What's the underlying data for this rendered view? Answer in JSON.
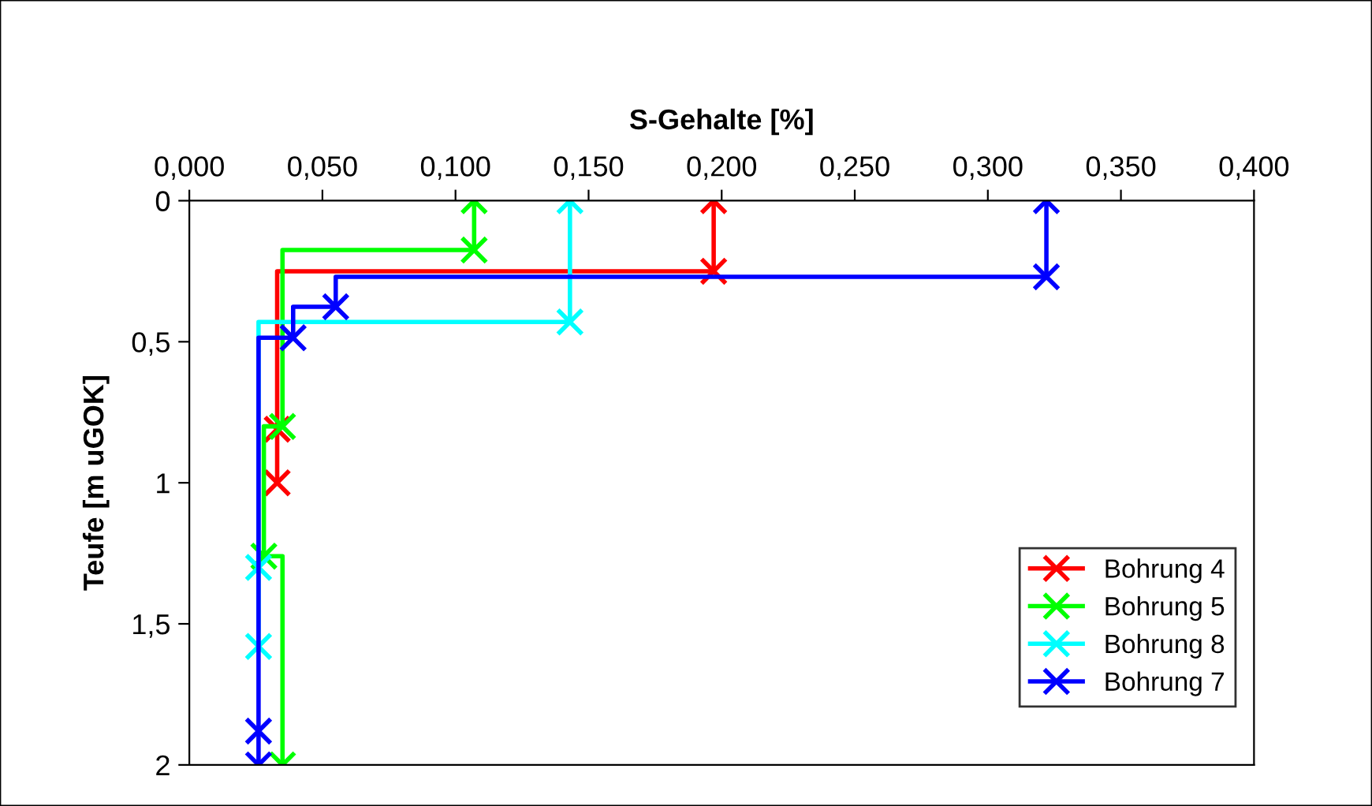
{
  "chart_data": {
    "type": "step",
    "xlabel": "S-Gehalte [%]",
    "ylabel": "Teufe [m uGOK]",
    "xlim": [
      0,
      0.4
    ],
    "ylim": [
      2,
      0
    ],
    "xticks": [
      {
        "value": 0,
        "label": "0,000"
      },
      {
        "value": 0.05,
        "label": "0,050"
      },
      {
        "value": 0.1,
        "label": "0,100"
      },
      {
        "value": 0.15,
        "label": "0,150"
      },
      {
        "value": 0.2,
        "label": "0,200"
      },
      {
        "value": 0.25,
        "label": "0,250"
      },
      {
        "value": 0.3,
        "label": "0,300"
      },
      {
        "value": 0.35,
        "label": "0,350"
      },
      {
        "value": 0.4,
        "label": "0,400"
      }
    ],
    "yticks": [
      0,
      {
        "value": 0.5,
        "label": "0,5"
      },
      1,
      {
        "value": 1.5,
        "label": "1,5"
      },
      2
    ],
    "series": [
      {
        "name": "Bohrung 4",
        "color": "#ff0000",
        "x": [
          0.197,
          0.197,
          0.033,
          0.033
        ],
        "values": [
          0,
          0.25,
          0.81,
          1.0
        ]
      },
      {
        "name": "Bohrung 5",
        "color": "#00ff00",
        "x": [
          0.107,
          0.107,
          0.035,
          0.028,
          0.035
        ],
        "values": [
          0,
          0.175,
          0.8,
          1.26,
          2.0
        ]
      },
      {
        "name": "Bohrung 8",
        "color": "#00ffff",
        "x": [
          0.143,
          0.143,
          0.026,
          0.026
        ],
        "values": [
          0,
          0.43,
          1.3,
          1.58
        ]
      },
      {
        "name": "Bohrung 7",
        "color": "#0000ff",
        "x": [
          0.322,
          0.322,
          0.055,
          0.039,
          0.026,
          0.026
        ],
        "values": [
          0,
          0.27,
          0.376,
          0.486,
          1.88,
          2.0
        ]
      }
    ],
    "marker": "cross",
    "legend": "lower right",
    "grid": false
  }
}
